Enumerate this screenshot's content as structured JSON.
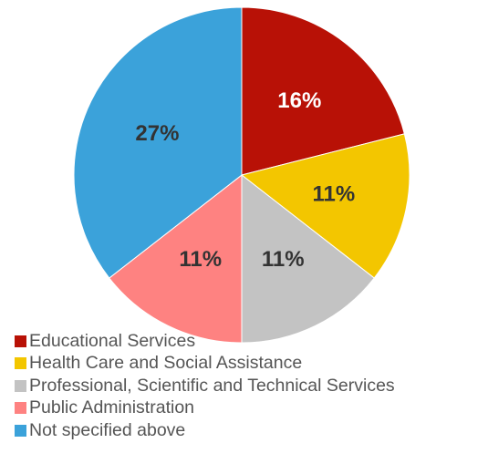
{
  "chart_data": {
    "type": "pie",
    "start": "top-clockwise",
    "legend_position": "bottom-left",
    "slices": [
      {
        "name": "Educational Services",
        "value": 16,
        "label": "16%",
        "color": "#b81106",
        "label_color": "#ffffff"
      },
      {
        "name": "Health Care and Social Assistance",
        "value": 11,
        "label": "11%",
        "color": "#f3c600",
        "label_color": "#333333"
      },
      {
        "name": "Professional, Scientific and Technical Services",
        "value": 11,
        "label": "11%",
        "color": "#c3c3c3",
        "label_color": "#333333"
      },
      {
        "name": "Public Administration",
        "value": 11,
        "label": "11%",
        "color": "#fe8281",
        "label_color": "#333333"
      },
      {
        "name": "Not specified above",
        "value": 27,
        "label": "27%",
        "color": "#3ba2da",
        "label_color": "#333333"
      }
    ]
  }
}
